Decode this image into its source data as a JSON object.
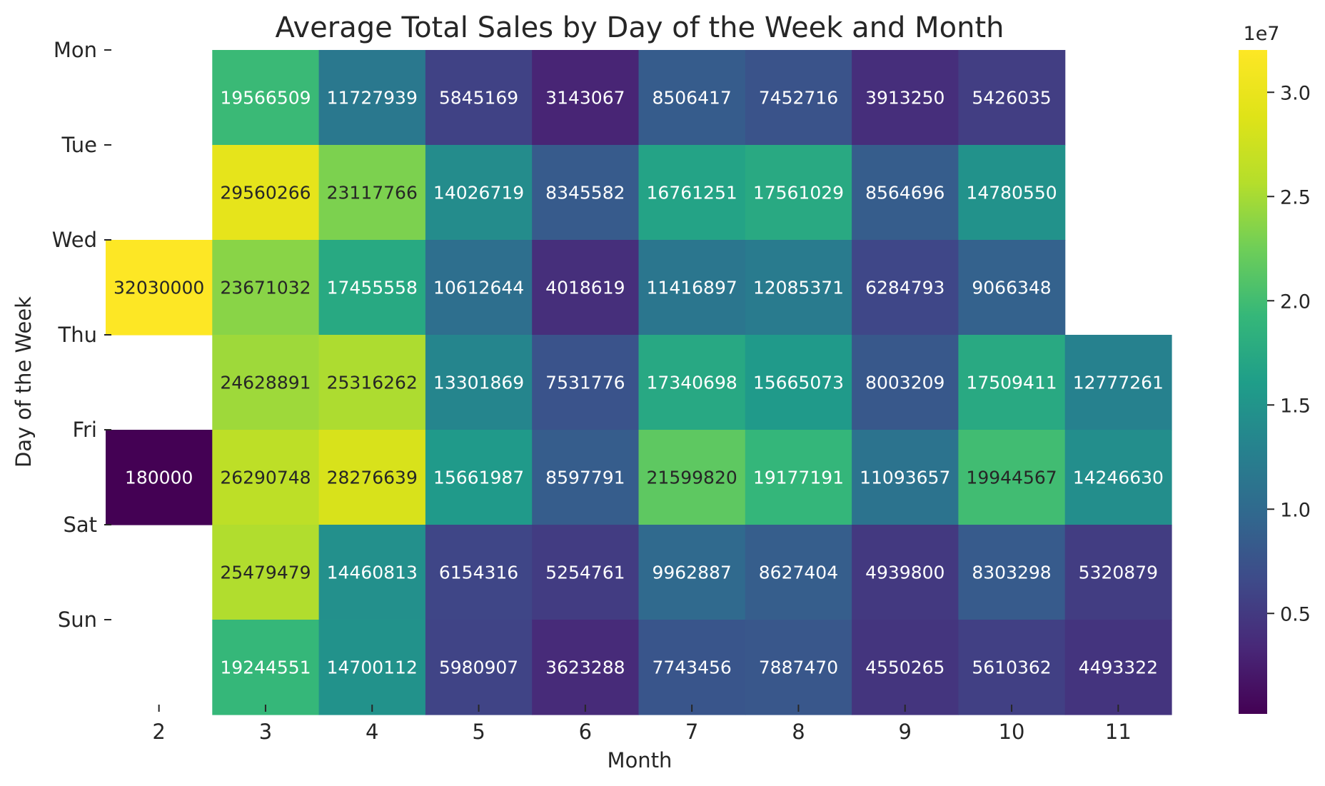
{
  "chart_data": {
    "type": "heatmap",
    "title": "Average Total Sales by Day of the Week and Month",
    "xlabel": "Month",
    "ylabel": "Day of the Week",
    "x_categories": [
      "2",
      "3",
      "4",
      "5",
      "6",
      "7",
      "8",
      "9",
      "10",
      "11"
    ],
    "y_categories": [
      "Mon",
      "Tue",
      "Wed",
      "Thu",
      "Fri",
      "Sat",
      "Sun"
    ],
    "values": [
      [
        null,
        19566509,
        11727939,
        5845169,
        3143067,
        8506417,
        7452716,
        3913250,
        5426035,
        null
      ],
      [
        null,
        29560266,
        23117766,
        14026719,
        8345582,
        16761251,
        17561029,
        8564696,
        14780550,
        null
      ],
      [
        32030000,
        23671032,
        17455558,
        10612644,
        4018619,
        11416897,
        12085371,
        6284793,
        9066348,
        null
      ],
      [
        null,
        24628891,
        25316262,
        13301869,
        7531776,
        17340698,
        15665073,
        8003209,
        17509411,
        12777261
      ],
      [
        180000,
        26290748,
        28276639,
        15661987,
        8597791,
        21599820,
        19177191,
        11093657,
        19944567,
        14246630
      ],
      [
        null,
        25479479,
        14460813,
        6154316,
        5254761,
        9962887,
        8627404,
        4939800,
        8303298,
        5320879
      ],
      [
        null,
        19244551,
        14700112,
        5980907,
        3623288,
        7743456,
        7887470,
        4550265,
        5610362,
        4493322
      ]
    ],
    "colormap": "viridis",
    "colorbar": {
      "range": [
        180000,
        32030000
      ],
      "ticks": [
        0.5,
        1.0,
        1.5,
        2.0,
        2.5,
        3.0
      ],
      "tick_labels": [
        "0.5",
        "1.0",
        "1.5",
        "2.0",
        "2.5",
        "3.0"
      ],
      "offset_label": "1e7"
    },
    "grid": false,
    "legend": "none"
  }
}
